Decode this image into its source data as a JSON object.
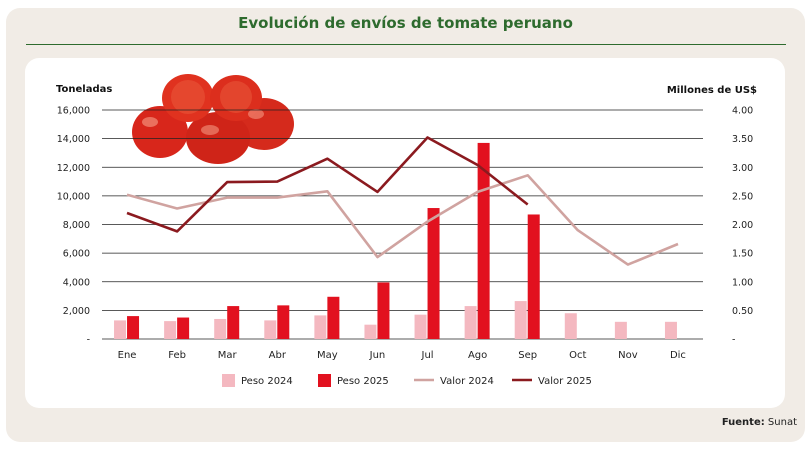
{
  "title": "Evolución de envíos de tomate peruano",
  "source_label": "Fuente:",
  "source_value": "Sunat",
  "chart_data": {
    "type": "bar",
    "title": "Evolución de envíos de tomate peruano",
    "categories": [
      "Ene",
      "Feb",
      "Mar",
      "Abr",
      "May",
      "Jun",
      "Jul",
      "Ago",
      "Sep",
      "Oct",
      "Nov",
      "Dic"
    ],
    "ylabel": "Toneladas",
    "y2label": "Millones de US$",
    "ylim": [
      0,
      16000
    ],
    "y2lim": [
      0,
      4
    ],
    "yticks": [
      "-",
      "2,000",
      "4,000",
      "6,000",
      "8,000",
      "10,000",
      "12,000",
      "14,000",
      "16,000"
    ],
    "y2ticks": [
      "-",
      "0.50",
      "1.00",
      "1.50",
      "2.00",
      "2.50",
      "3.00",
      "3.50",
      "4.00"
    ],
    "grid": true,
    "legend_position": "bottom",
    "series": [
      {
        "name": "Peso 2024",
        "kind": "bar",
        "axis": "left",
        "color": "#f4b8c0",
        "values": [
          1300,
          1250,
          1400,
          1300,
          1650,
          1000,
          1700,
          2300,
          2650,
          1800,
          1200,
          1200
        ]
      },
      {
        "name": "Peso 2025",
        "kind": "bar",
        "axis": "left",
        "color": "#e2111f",
        "values": [
          1600,
          1500,
          2300,
          2350,
          2950,
          3950,
          9150,
          13700,
          8700,
          null,
          null,
          null
        ]
      },
      {
        "name": "Valor 2024",
        "kind": "line",
        "axis": "right",
        "color": "#d0a3a0",
        "values": [
          2.52,
          2.28,
          2.47,
          2.47,
          2.58,
          1.43,
          2.05,
          2.57,
          2.86,
          1.9,
          1.3,
          1.66
        ]
      },
      {
        "name": "Valor 2025",
        "kind": "line",
        "axis": "right",
        "color": "#8b1a1f",
        "values": [
          2.2,
          1.88,
          2.74,
          2.75,
          3.15,
          2.57,
          3.52,
          3.04,
          2.35,
          null,
          null,
          null
        ]
      }
    ]
  }
}
